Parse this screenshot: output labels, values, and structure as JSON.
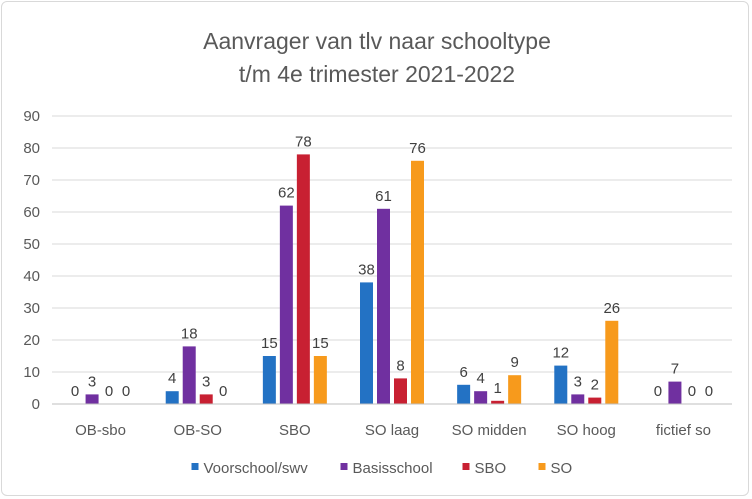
{
  "chart_data": {
    "type": "bar",
    "title": [
      "Aanvrager van tlv naar schooltype",
      "t/m 4e trimester 2021-2022"
    ],
    "categories": [
      "OB-sbo",
      "OB-SO",
      "SBO",
      "SO laag",
      "SO midden",
      "SO hoog",
      "fictief so"
    ],
    "series": [
      {
        "name": "Voorschool/swv",
        "color": "#2372C4",
        "values": [
          0,
          4,
          15,
          38,
          6,
          12,
          0
        ]
      },
      {
        "name": "Basisschool",
        "color": "#7030A0",
        "values": [
          3,
          18,
          62,
          61,
          4,
          3,
          7
        ]
      },
      {
        "name": "SBO",
        "color": "#C82032",
        "values": [
          0,
          3,
          78,
          8,
          1,
          2,
          0
        ]
      },
      {
        "name": "SO",
        "color": "#F79A1C",
        "values": [
          0,
          0,
          15,
          76,
          9,
          26,
          0
        ]
      }
    ],
    "ylim": [
      0,
      90
    ],
    "yticks": [
      0,
      10,
      20,
      30,
      40,
      50,
      60,
      70,
      80,
      90
    ],
    "grid": true,
    "data_labels": true,
    "legend_position": "bottom"
  }
}
